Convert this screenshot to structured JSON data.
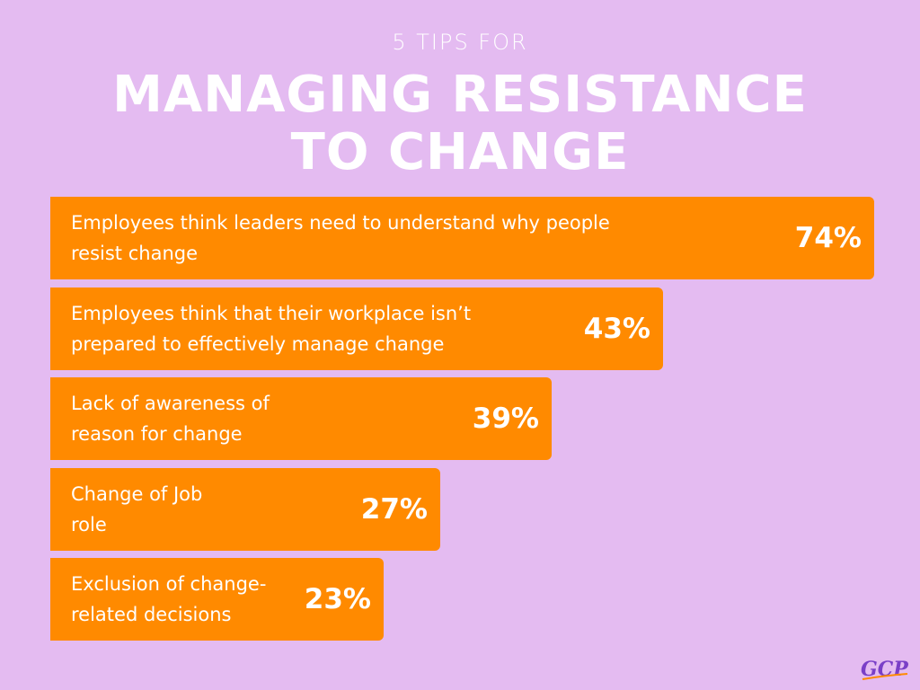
{
  "header": {
    "eyebrow": "5 TIPS FOR",
    "title_line1": "MANAGING RESISTANCE",
    "title_line2": "TO CHANGE"
  },
  "colors": {
    "background": "#e4bbf1",
    "bar": "#ff8a00",
    "text": "#ffffff"
  },
  "chart_data": {
    "type": "bar",
    "orientation": "horizontal",
    "xlim": [
      0,
      100
    ],
    "categories": [
      "Employees think leaders need to understand why people resist change",
      "Employees think that their workplace isn’t prepared to effectively manage change",
      "Lack of awareness of reason for change",
      "Change of Job role",
      "Exclusion of change-related decisions"
    ],
    "category_lines": [
      [
        "Employees think leaders need to understand why people",
        "resist change"
      ],
      [
        "Employees think that their workplace isn’t",
        "prepared to effectively manage change"
      ],
      [
        "Lack of awareness of",
        "reason for change"
      ],
      [
        "Change of Job",
        "role"
      ],
      [
        "Exclusion of change-",
        "related decisions"
      ]
    ],
    "values": [
      74,
      43,
      39,
      27,
      23
    ],
    "value_labels": [
      "74%",
      "43%",
      "39%",
      "27%",
      "23%"
    ]
  },
  "logo": {
    "text": "GCP"
  }
}
